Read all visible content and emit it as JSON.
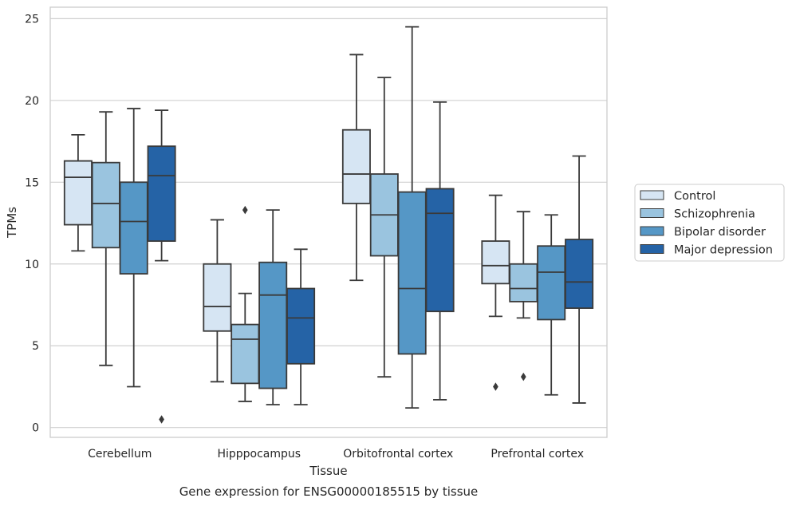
{
  "chart_data": {
    "type": "boxplot",
    "xlabel": "Tissue",
    "ylabel": "TPMs",
    "caption": "Gene expression for ENSG00000185515 by tissue",
    "categories": [
      "Cerebellum",
      "Hipppocampus",
      "Orbitofrontal cortex",
      "Prefrontal cortex"
    ],
    "ylim": [
      -0.6,
      25.7
    ],
    "yticks": [
      0,
      5,
      10,
      15,
      20,
      25
    ],
    "grid": "horizontal",
    "legend_position": "center-right",
    "colors": {
      "Control": "#d6e5f3",
      "Schizophrenia": "#9ac4df",
      "Bipolar disorder": "#5597c6",
      "Major depression": "#2563a6",
      "box_edge": "#3a3a3a",
      "grid": "#d0d0d0"
    },
    "series": [
      {
        "name": "Control",
        "boxes": [
          {
            "whislo": 10.8,
            "q1": 12.4,
            "med": 15.3,
            "q3": 16.3,
            "whishi": 17.9,
            "fliers": []
          },
          {
            "whislo": 2.8,
            "q1": 5.9,
            "med": 7.4,
            "q3": 10.0,
            "whishi": 12.7,
            "fliers": []
          },
          {
            "whislo": 9.0,
            "q1": 13.7,
            "med": 15.5,
            "q3": 18.2,
            "whishi": 22.8,
            "fliers": []
          },
          {
            "whislo": 6.8,
            "q1": 8.8,
            "med": 9.9,
            "q3": 11.4,
            "whishi": 14.2,
            "fliers": [
              2.5
            ]
          }
        ]
      },
      {
        "name": "Schizophrenia",
        "boxes": [
          {
            "whislo": 3.8,
            "q1": 11.0,
            "med": 13.7,
            "q3": 16.2,
            "whishi": 19.3,
            "fliers": []
          },
          {
            "whislo": 1.6,
            "q1": 2.7,
            "med": 5.4,
            "q3": 6.3,
            "whishi": 8.2,
            "fliers": [
              13.3
            ]
          },
          {
            "whislo": 3.1,
            "q1": 10.5,
            "med": 13.0,
            "q3": 15.5,
            "whishi": 21.4,
            "fliers": []
          },
          {
            "whislo": 6.7,
            "q1": 7.7,
            "med": 8.5,
            "q3": 10.0,
            "whishi": 13.2,
            "fliers": [
              3.1
            ]
          }
        ]
      },
      {
        "name": "Bipolar disorder",
        "boxes": [
          {
            "whislo": 2.5,
            "q1": 9.4,
            "med": 12.6,
            "q3": 15.0,
            "whishi": 19.5,
            "fliers": []
          },
          {
            "whislo": 1.4,
            "q1": 2.4,
            "med": 8.1,
            "q3": 10.1,
            "whishi": 13.3,
            "fliers": []
          },
          {
            "whislo": 1.2,
            "q1": 4.5,
            "med": 8.5,
            "q3": 14.4,
            "whishi": 24.5,
            "fliers": []
          },
          {
            "whislo": 2.0,
            "q1": 6.6,
            "med": 9.5,
            "q3": 11.1,
            "whishi": 13.0,
            "fliers": []
          }
        ]
      },
      {
        "name": "Major depression",
        "boxes": [
          {
            "whislo": 10.2,
            "q1": 11.4,
            "med": 15.4,
            "q3": 17.2,
            "whishi": 19.4,
            "fliers": [
              0.5
            ]
          },
          {
            "whislo": 1.4,
            "q1": 3.9,
            "med": 6.7,
            "q3": 8.5,
            "whishi": 10.9,
            "fliers": []
          },
          {
            "whislo": 1.7,
            "q1": 7.1,
            "med": 13.1,
            "q3": 14.6,
            "whishi": 19.9,
            "fliers": []
          },
          {
            "whislo": 1.5,
            "q1": 7.3,
            "med": 8.9,
            "q3": 11.5,
            "whishi": 16.6,
            "fliers": []
          }
        ]
      }
    ]
  }
}
